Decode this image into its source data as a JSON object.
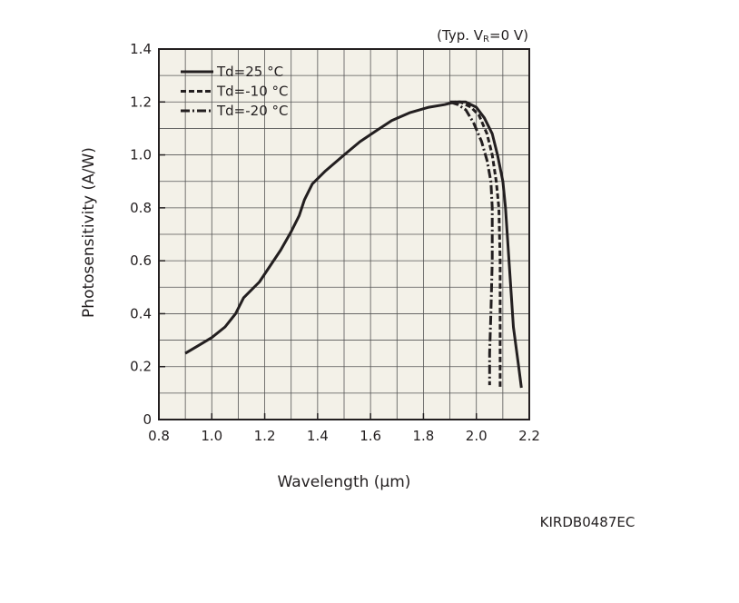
{
  "chart_data": {
    "type": "line",
    "title": "",
    "condition_prefix": "(Typ. V",
    "condition_subscript": "R",
    "condition_suffix": "=0 V)",
    "xlabel": "Wavelength (µm)",
    "ylabel": "Photosensitivity (A/W)",
    "xlim": [
      0.8,
      2.2
    ],
    "ylim": [
      0,
      1.4
    ],
    "x_ticks": [
      "0.8",
      "1.0",
      "1.2",
      "1.4",
      "1.6",
      "1.8",
      "2.0",
      "2.2"
    ],
    "y_ticks": [
      "0",
      "0.2",
      "0.4",
      "0.6",
      "0.8",
      "1.0",
      "1.2",
      "1.4"
    ],
    "grid": true,
    "legend_position": "top-left",
    "background_color": "#f3f1e8",
    "line_color": "#231f20",
    "series": [
      {
        "name": "Td=25 °C",
        "style": "solid",
        "points": [
          [
            0.9,
            0.25
          ],
          [
            0.95,
            0.28
          ],
          [
            1.0,
            0.31
          ],
          [
            1.05,
            0.35
          ],
          [
            1.09,
            0.4
          ],
          [
            1.12,
            0.46
          ],
          [
            1.15,
            0.49
          ],
          [
            1.18,
            0.52
          ],
          [
            1.22,
            0.58
          ],
          [
            1.26,
            0.64
          ],
          [
            1.3,
            0.71
          ],
          [
            1.33,
            0.77
          ],
          [
            1.35,
            0.83
          ],
          [
            1.38,
            0.89
          ],
          [
            1.43,
            0.94
          ],
          [
            1.5,
            1.0
          ],
          [
            1.56,
            1.05
          ],
          [
            1.62,
            1.09
          ],
          [
            1.68,
            1.13
          ],
          [
            1.75,
            1.16
          ],
          [
            1.82,
            1.18
          ],
          [
            1.88,
            1.19
          ],
          [
            1.92,
            1.2
          ],
          [
            1.96,
            1.2
          ],
          [
            2.0,
            1.18
          ],
          [
            2.03,
            1.14
          ],
          [
            2.06,
            1.08
          ],
          [
            2.08,
            1.0
          ],
          [
            2.1,
            0.9
          ],
          [
            2.11,
            0.8
          ],
          [
            2.12,
            0.65
          ],
          [
            2.13,
            0.5
          ],
          [
            2.14,
            0.35
          ],
          [
            2.16,
            0.2
          ],
          [
            2.17,
            0.12
          ]
        ]
      },
      {
        "name": "Td=-10 °C",
        "style": "dashed",
        "points": [
          [
            1.9,
            1.2
          ],
          [
            1.94,
            1.2
          ],
          [
            1.98,
            1.18
          ],
          [
            2.01,
            1.15
          ],
          [
            2.04,
            1.08
          ],
          [
            2.06,
            1.0
          ],
          [
            2.075,
            0.9
          ],
          [
            2.085,
            0.8
          ],
          [
            2.09,
            0.6
          ],
          [
            2.09,
            0.4
          ],
          [
            2.09,
            0.25
          ],
          [
            2.09,
            0.12
          ]
        ]
      },
      {
        "name": "Td=-20 °C",
        "style": "dashdot",
        "points": [
          [
            1.9,
            1.2
          ],
          [
            1.93,
            1.19
          ],
          [
            1.96,
            1.17
          ],
          [
            1.99,
            1.12
          ],
          [
            2.02,
            1.05
          ],
          [
            2.04,
            0.98
          ],
          [
            2.055,
            0.9
          ],
          [
            2.06,
            0.8
          ],
          [
            2.06,
            0.6
          ],
          [
            2.055,
            0.4
          ],
          [
            2.05,
            0.25
          ],
          [
            2.05,
            0.13
          ]
        ]
      }
    ],
    "footer_code": "KIRDB0487EC"
  }
}
